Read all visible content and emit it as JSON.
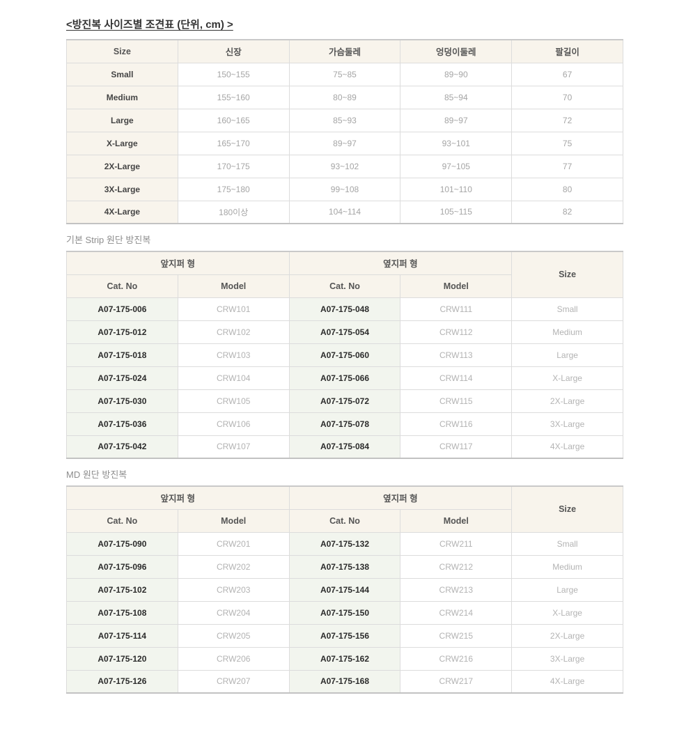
{
  "page": {
    "title": "<방진복 사이즈별 조견표 (단위, cm) >"
  },
  "colors": {
    "header_bg": "#f8f4ec",
    "catno_bg": "#f2f5ee",
    "border": "#dcdcdc",
    "outer_border": "#c9c9c9",
    "dark_text": "#333333",
    "muted_text": "#a5a5a5",
    "section_title_text": "#8d8d8d"
  },
  "size_table": {
    "headers": [
      "Size",
      "신장",
      "가슴둘레",
      "엉덩이둘레",
      "팔길이"
    ],
    "rows": [
      [
        "Small",
        "150~155",
        "75~85",
        "89~90",
        "67"
      ],
      [
        "Medium",
        "155~160",
        "80~89",
        "85~94",
        "70"
      ],
      [
        "Large",
        "160~165",
        "85~93",
        "89~97",
        "72"
      ],
      [
        "X-Large",
        "165~170",
        "89~97",
        "93~101",
        "75"
      ],
      [
        "2X-Large",
        "170~175",
        "93~102",
        "97~105",
        "77"
      ],
      [
        "3X-Large",
        "175~180",
        "99~108",
        "101~110",
        "80"
      ],
      [
        "4X-Large",
        "180이상",
        "104~114",
        "105~115",
        "82"
      ]
    ]
  },
  "strip_section": {
    "title": "기본 Strip 원단 방진복",
    "table": {
      "group_headers": [
        "앞지퍼 형",
        "옆지퍼 형"
      ],
      "size_header": "Size",
      "sub_headers": [
        "Cat. No",
        "Model",
        "Cat. No",
        "Model"
      ],
      "rows": [
        [
          "A07-175-006",
          "CRW101",
          "A07-175-048",
          "CRW111",
          "Small"
        ],
        [
          "A07-175-012",
          "CRW102",
          "A07-175-054",
          "CRW112",
          "Medium"
        ],
        [
          "A07-175-018",
          "CRW103",
          "A07-175-060",
          "CRW113",
          "Large"
        ],
        [
          "A07-175-024",
          "CRW104",
          "A07-175-066",
          "CRW114",
          "X-Large"
        ],
        [
          "A07-175-030",
          "CRW105",
          "A07-175-072",
          "CRW115",
          "2X-Large"
        ],
        [
          "A07-175-036",
          "CRW106",
          "A07-175-078",
          "CRW116",
          "3X-Large"
        ],
        [
          "A07-175-042",
          "CRW107",
          "A07-175-084",
          "CRW117",
          "4X-Large"
        ]
      ]
    }
  },
  "md_section": {
    "title": "MD 원단 방진복",
    "table": {
      "group_headers": [
        "앞지퍼 형",
        "옆지퍼 형"
      ],
      "size_header": "Size",
      "sub_headers": [
        "Cat. No",
        "Model",
        "Cat. No",
        "Model"
      ],
      "rows": [
        [
          "A07-175-090",
          "CRW201",
          "A07-175-132",
          "CRW211",
          "Small"
        ],
        [
          "A07-175-096",
          "CRW202",
          "A07-175-138",
          "CRW212",
          "Medium"
        ],
        [
          "A07-175-102",
          "CRW203",
          "A07-175-144",
          "CRW213",
          "Large"
        ],
        [
          "A07-175-108",
          "CRW204",
          "A07-175-150",
          "CRW214",
          "X-Large"
        ],
        [
          "A07-175-114",
          "CRW205",
          "A07-175-156",
          "CRW215",
          "2X-Large"
        ],
        [
          "A07-175-120",
          "CRW206",
          "A07-175-162",
          "CRW216",
          "3X-Large"
        ],
        [
          "A07-175-126",
          "CRW207",
          "A07-175-168",
          "CRW217",
          "4X-Large"
        ]
      ]
    }
  }
}
